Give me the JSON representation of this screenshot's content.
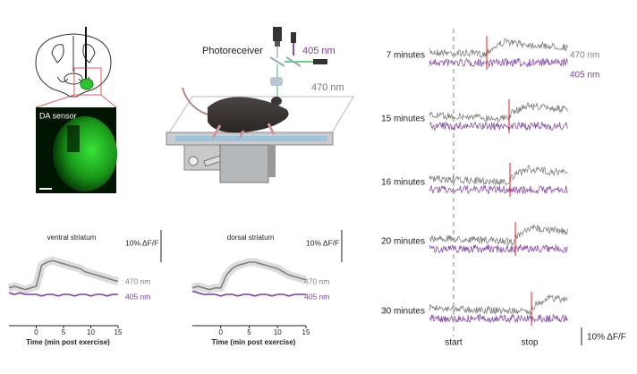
{
  "histology": {
    "label": "DA sensor"
  },
  "setup": {
    "photoreceiver": "Photoreceiver",
    "wavelength_405": "405 nm",
    "wavelength_470": "470 nm"
  },
  "chart_data": [
    {
      "type": "line",
      "title": "ventral striatum",
      "scale_bar": "10% ΔF/F",
      "xlabel": "Time (min post exercise)",
      "xlim": [
        -5,
        15
      ],
      "xticks": [
        0,
        5,
        10,
        15
      ],
      "ylim": [
        -7,
        18
      ],
      "x": [
        -5,
        -4,
        -3,
        -2,
        -1,
        0,
        1,
        2,
        3,
        4,
        5,
        6,
        7,
        8,
        9,
        10,
        11,
        12,
        13,
        14,
        15
      ],
      "series": [
        {
          "name": "470 nm",
          "color": "#808080",
          "values": [
            0,
            0.5,
            0,
            -0.5,
            0,
            0.5,
            7,
            8,
            8.5,
            8,
            7.5,
            7,
            6.5,
            6,
            5,
            4.5,
            4,
            3.5,
            3,
            2.5,
            2
          ]
        },
        {
          "name": "405 nm",
          "color": "#7b3f9e",
          "values": [
            -1.5,
            -2,
            -1.5,
            -2,
            -2,
            -2,
            -2.5,
            -2,
            -2,
            -2.5,
            -2,
            -2,
            -2.5,
            -2,
            -2,
            -2.5,
            -2,
            -2,
            -2.5,
            -2,
            -2
          ]
        }
      ]
    },
    {
      "type": "line",
      "title": "dorsal striatum",
      "scale_bar": "10% ΔF/F",
      "xlabel": "Time (min post exercise)",
      "xlim": [
        -5,
        15
      ],
      "xticks": [
        0,
        5,
        10,
        15
      ],
      "ylim": [
        -7,
        18
      ],
      "x": [
        -5,
        -4,
        -3,
        -2,
        -1,
        0,
        1,
        2,
        3,
        4,
        5,
        6,
        7,
        8,
        9,
        10,
        11,
        12,
        13,
        14,
        15
      ],
      "series": [
        {
          "name": "470 nm",
          "color": "#808080",
          "values": [
            0,
            0.5,
            0,
            -0.5,
            0,
            0,
            4,
            6,
            7,
            7.5,
            8,
            8,
            7.5,
            7,
            6.5,
            6,
            5,
            4,
            3.5,
            3,
            2.5
          ]
        },
        {
          "name": "405 nm",
          "color": "#7b3f9e",
          "values": [
            -1,
            -1.5,
            -2,
            -2,
            -2,
            -2.5,
            -2,
            -2,
            -2.5,
            -2,
            -2,
            -2.5,
            -2,
            -2,
            -2.5,
            -2,
            -2,
            -2.5,
            -2,
            -2,
            -2
          ]
        }
      ]
    }
  ],
  "sessions": {
    "rows": [
      "7 minutes",
      "15 minutes",
      "16 minutes",
      "20 minutes",
      "30 minutes"
    ],
    "legend": [
      {
        "name": "470 nm",
        "color": "#808080"
      },
      {
        "name": "405 nm",
        "color": "#7b3f9e"
      }
    ],
    "start": "start",
    "stop": "stop",
    "scale_bar": "10% ΔF/F"
  }
}
